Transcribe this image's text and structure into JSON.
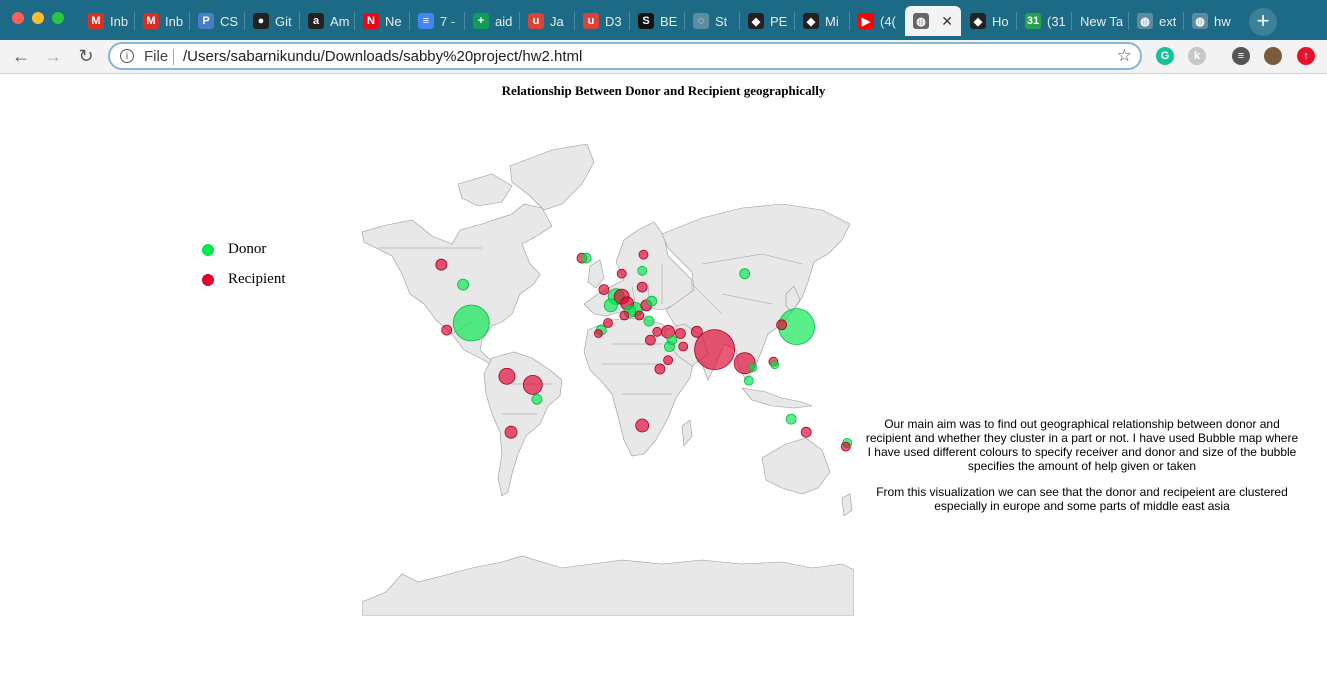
{
  "browser": {
    "window_controls": [
      {
        "name": "close",
        "color": "#ff5f57"
      },
      {
        "name": "minimize",
        "color": "#febc2e"
      },
      {
        "name": "maximize",
        "color": "#28c840"
      }
    ],
    "tabs": [
      {
        "label": "Inb",
        "icon": "gmail-icon",
        "icon_text": "M",
        "icon_color": "#d93025"
      },
      {
        "label": "Inb",
        "icon": "gmail-icon",
        "icon_text": "M",
        "icon_color": "#d93025"
      },
      {
        "label": "CS",
        "icon": "p-icon",
        "icon_text": "P",
        "icon_color": "#4a7cc7"
      },
      {
        "label": "Git",
        "icon": "github-icon",
        "icon_text": "●",
        "icon_color": "#222222"
      },
      {
        "label": "Am",
        "icon": "amazon-icon",
        "icon_text": "a",
        "icon_color": "#222222"
      },
      {
        "label": "Ne",
        "icon": "netflix-icon",
        "icon_text": "N",
        "icon_color": "#e50914"
      },
      {
        "label": "7 -",
        "icon": "docs-icon",
        "icon_text": "≡",
        "icon_color": "#4285f4"
      },
      {
        "label": "aid",
        "icon": "sheets-plus-icon",
        "icon_text": "+",
        "icon_color": "#0f9d58"
      },
      {
        "label": "Ja",
        "icon": "u-icon",
        "icon_text": "u",
        "icon_color": "#d9443a"
      },
      {
        "label": "D3",
        "icon": "u-icon",
        "icon_text": "u",
        "icon_color": "#d9443a"
      },
      {
        "label": "BE",
        "icon": "s-icon",
        "icon_text": "S",
        "icon_color": "#111111"
      },
      {
        "label": "St",
        "icon": "loading-icon",
        "icon_text": "◌",
        "icon_color": "#5c8c9e"
      },
      {
        "label": "PE",
        "icon": "codepen-icon",
        "icon_text": "◆",
        "icon_color": "#222222"
      },
      {
        "label": "Mi",
        "icon": "codepen-icon",
        "icon_text": "◆",
        "icon_color": "#222222"
      },
      {
        "label": "(4(",
        "icon": "youtube-icon",
        "icon_text": "▶",
        "icon_color": "#ff0000"
      },
      {
        "label": "",
        "icon": "globe-icon",
        "icon_text": "◍",
        "icon_color": "#666666",
        "active": true
      },
      {
        "label": "Ho",
        "icon": "codepen-icon",
        "icon_text": "◆",
        "icon_color": "#222222"
      },
      {
        "label": "(31",
        "icon": "badge-31-icon",
        "icon_text": "31",
        "icon_color": "#25a34a"
      },
      {
        "label": "New Ta",
        "icon": "",
        "icon_text": "",
        "icon_color": ""
      },
      {
        "label": "ext",
        "icon": "globe-icon",
        "icon_text": "◍",
        "icon_color": "#5c8c9e"
      },
      {
        "label": "hw",
        "icon": "globe-icon",
        "icon_text": "◍",
        "icon_color": "#5c8c9e"
      }
    ],
    "new_tab_label": "+",
    "nav": {
      "back": "←",
      "forward": "→",
      "reload": "↻"
    },
    "omnibox": {
      "info_icon": "i",
      "scheme_label": "File",
      "url": "/Users/sabarnikundu/Downloads/sabby%20project/hw2.html",
      "star": "☆"
    },
    "extensions": [
      {
        "name": "grammarly-icon",
        "color": "#15c39a",
        "text": "G"
      },
      {
        "name": "extension-k-icon",
        "color": "#c7c7c7",
        "text": "k"
      },
      {
        "name": "media-queue-icon",
        "color": "#555555",
        "text": "≡"
      },
      {
        "name": "profile-avatar",
        "color": "#7a5a3a",
        "text": ""
      },
      {
        "name": "update-icon",
        "color": "#e8112d",
        "text": "↑"
      }
    ]
  },
  "page": {
    "title": "Relationship Between Donor and Recipient geographically",
    "legend": [
      {
        "label": "Donor",
        "color": "#00e64d"
      },
      {
        "label": "Recipient",
        "color": "#e00030"
      }
    ],
    "description_1": "Our main aim was to find out geographical relationship between donor and recipient and whether they cluster in a part or not. I have used Bubble map where I have used different colours to specify receiver and donor and size of the bubble specifies the amount of help given or taken",
    "description_2": "From this visualization we can see that the donor and recipeient are clustered especially in europe and some parts of middle east asia",
    "map": {
      "land_color": "#e8e8e8",
      "border_color": "#9a9a9a",
      "bubbles": [
        {
          "lon": -100,
          "lat": 38,
          "role": "donor",
          "size": 3.6
        },
        {
          "lon": 138,
          "lat": 36,
          "role": "donor",
          "size": 3.6
        },
        {
          "lon": 78,
          "lat": 22,
          "role": "recipient",
          "size": 4.0
        },
        {
          "lon": 100,
          "lat": 13,
          "role": "recipient",
          "size": 2.1
        },
        {
          "lon": -106,
          "lat": 56,
          "role": "donor",
          "size": 1.1
        },
        {
          "lon": -122,
          "lat": 63,
          "role": "recipient",
          "size": 1.1
        },
        {
          "lon": -118,
          "lat": 34,
          "role": "recipient",
          "size": 1.0
        },
        {
          "lon": -74,
          "lat": 4,
          "role": "recipient",
          "size": 1.6
        },
        {
          "lon": -55,
          "lat": -2,
          "role": "recipient",
          "size": 1.9
        },
        {
          "lon": -52,
          "lat": -12,
          "role": "donor",
          "size": 1.0
        },
        {
          "lon": -71,
          "lat": -33,
          "role": "recipient",
          "size": 1.2
        },
        {
          "lon": -19,
          "lat": 65,
          "role": "recipient",
          "size": 1.0
        },
        {
          "lon": -16,
          "lat": 65,
          "role": "donor",
          "size": 1.0
        },
        {
          "lon": 10,
          "lat": 60,
          "role": "recipient",
          "size": 0.9
        },
        {
          "lon": 25,
          "lat": 61,
          "role": "donor",
          "size": 0.9
        },
        {
          "lon": 26,
          "lat": 66,
          "role": "recipient",
          "size": 0.9
        },
        {
          "lon": 100,
          "lat": 60,
          "role": "donor",
          "size": 1.0
        },
        {
          "lon": -3,
          "lat": 54,
          "role": "recipient",
          "size": 1.0
        },
        {
          "lon": 2,
          "lat": 47,
          "role": "donor",
          "size": 1.3
        },
        {
          "lon": 6,
          "lat": 51,
          "role": "donor",
          "size": 1.6
        },
        {
          "lon": 10,
          "lat": 51,
          "role": "recipient",
          "size": 1.5
        },
        {
          "lon": 14,
          "lat": 48,
          "role": "recipient",
          "size": 1.3
        },
        {
          "lon": 20,
          "lat": 45,
          "role": "donor",
          "size": 1.4
        },
        {
          "lon": 16,
          "lat": 44,
          "role": "donor",
          "size": 1.2
        },
        {
          "lon": 25,
          "lat": 55,
          "role": "recipient",
          "size": 1.0
        },
        {
          "lon": 28,
          "lat": 47,
          "role": "recipient",
          "size": 1.1
        },
        {
          "lon": 32,
          "lat": 49,
          "role": "donor",
          "size": 1.0
        },
        {
          "lon": 23,
          "lat": 42,
          "role": "recipient",
          "size": 0.9
        },
        {
          "lon": 30,
          "lat": 39,
          "role": "donor",
          "size": 1.0
        },
        {
          "lon": 12,
          "lat": 42,
          "role": "recipient",
          "size": 0.9
        },
        {
          "lon": 0,
          "lat": 38,
          "role": "recipient",
          "size": 0.9
        },
        {
          "lon": -5,
          "lat": 34,
          "role": "donor",
          "size": 1.0
        },
        {
          "lon": -7,
          "lat": 32,
          "role": "recipient",
          "size": 0.8
        },
        {
          "lon": 31,
          "lat": 28,
          "role": "recipient",
          "size": 1.0
        },
        {
          "lon": 36,
          "lat": 33,
          "role": "recipient",
          "size": 0.9
        },
        {
          "lon": 44,
          "lat": 33,
          "role": "recipient",
          "size": 1.3
        },
        {
          "lon": 53,
          "lat": 32,
          "role": "recipient",
          "size": 1.0
        },
        {
          "lon": 47,
          "lat": 28,
          "role": "donor",
          "size": 0.9
        },
        {
          "lon": 44,
          "lat": 15,
          "role": "recipient",
          "size": 0.9
        },
        {
          "lon": 38,
          "lat": 9,
          "role": "recipient",
          "size": 1.0
        },
        {
          "lon": 45,
          "lat": 24,
          "role": "donor",
          "size": 1.0
        },
        {
          "lon": 55,
          "lat": 24,
          "role": "recipient",
          "size": 0.9
        },
        {
          "lon": 65,
          "lat": 33,
          "role": "recipient",
          "size": 1.1
        },
        {
          "lon": 103,
          "lat": 1,
          "role": "donor",
          "size": 0.9
        },
        {
          "lon": 106,
          "lat": 10,
          "role": "donor",
          "size": 0.8
        },
        {
          "lon": 121,
          "lat": 14,
          "role": "recipient",
          "size": 0.9
        },
        {
          "lon": 122,
          "lat": 12,
          "role": "donor",
          "size": 0.8
        },
        {
          "lon": 127,
          "lat": 37,
          "role": "recipient",
          "size": 1.0
        },
        {
          "lon": 134,
          "lat": -25,
          "role": "donor",
          "size": 1.0
        },
        {
          "lon": 145,
          "lat": -33,
          "role": "recipient",
          "size": 1.0
        },
        {
          "lon": 175,
          "lat": -39,
          "role": "donor",
          "size": 0.9
        },
        {
          "lon": 174,
          "lat": -41,
          "role": "recipient",
          "size": 0.9
        },
        {
          "lon": 25,
          "lat": -29,
          "role": "recipient",
          "size": 1.3
        }
      ]
    }
  }
}
